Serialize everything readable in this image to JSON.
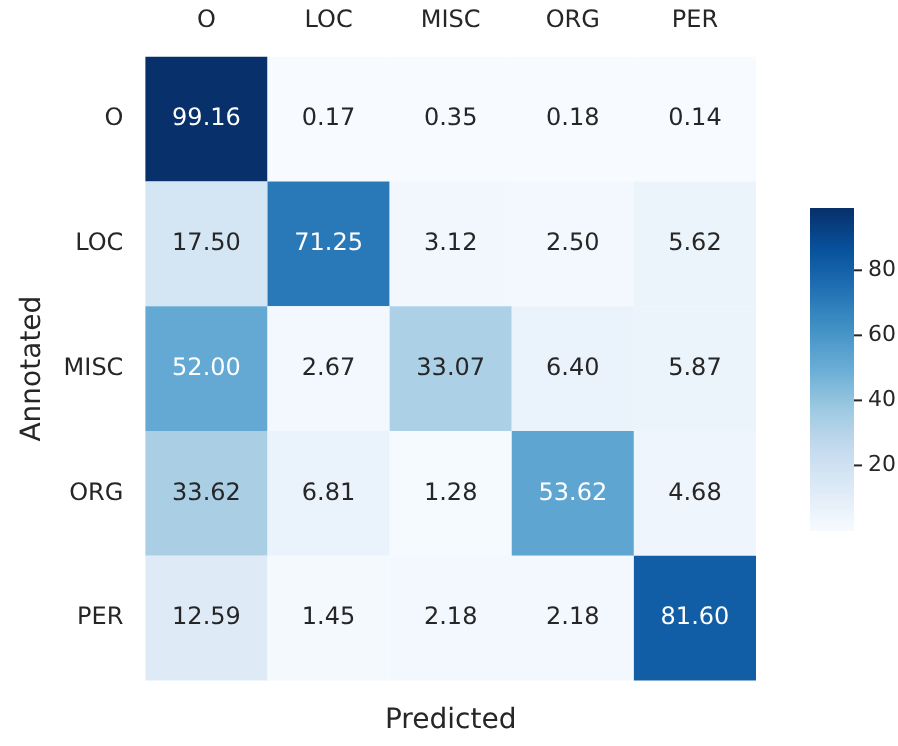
{
  "chart_data": {
    "type": "heatmap",
    "xlabel": "Predicted",
    "ylabel": "Annotated",
    "categories": [
      "O",
      "LOC",
      "MISC",
      "ORG",
      "PER"
    ],
    "y_categories": [
      "O",
      "LOC",
      "MISC",
      "ORG",
      "PER"
    ],
    "cells": [
      [
        99.16,
        0.17,
        0.35,
        0.18,
        0.14
      ],
      [
        17.5,
        71.25,
        3.12,
        2.5,
        5.62
      ],
      [
        52.0,
        2.67,
        33.07,
        6.4,
        5.87
      ],
      [
        33.62,
        6.81,
        1.28,
        53.62,
        4.68
      ],
      [
        12.59,
        1.45,
        2.18,
        2.18,
        81.6
      ]
    ],
    "cell_labels": [
      [
        "99.16",
        "0.17",
        "0.35",
        "0.18",
        "0.14"
      ],
      [
        "17.50",
        "71.25",
        "3.12",
        "2.50",
        "5.62"
      ],
      [
        "52.00",
        "2.67",
        "33.07",
        "6.40",
        "5.87"
      ],
      [
        "33.62",
        "6.81",
        "1.28",
        "53.62",
        "4.68"
      ],
      [
        "12.59",
        "1.45",
        "2.18",
        "2.18",
        "81.60"
      ]
    ],
    "clim": [
      0.14,
      99.16
    ],
    "cticks": [
      20,
      40,
      60,
      80
    ]
  }
}
